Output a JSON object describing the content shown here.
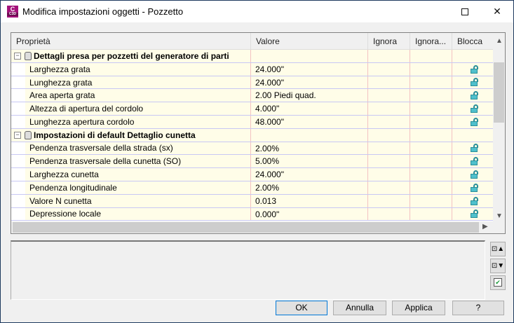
{
  "window": {
    "title": "Modifica impostazioni oggetti - Pozzetto",
    "app_icon_letter": "C",
    "app_icon_sub": "C3D"
  },
  "columns": [
    "Proprietà",
    "Valore",
    "Ignora",
    "Ignora...",
    "Blocca"
  ],
  "groups": [
    {
      "label": "Dettagli presa per pozzetti del generatore di parti",
      "rows": [
        {
          "name": "Larghezza grata",
          "value": "24.000\""
        },
        {
          "name": "Lunghezza grata",
          "value": "24.000\""
        },
        {
          "name": "Area aperta grata",
          "value": "2.00 Piedi quad."
        },
        {
          "name": "Altezza di apertura del cordolo",
          "value": "4.000\""
        },
        {
          "name": "Lunghezza apertura cordolo",
          "value": "48.000\""
        }
      ]
    },
    {
      "label": "Impostazioni di default Dettaglio cunetta",
      "rows": [
        {
          "name": "Pendenza trasversale della strada (sx)",
          "value": "2.00%"
        },
        {
          "name": "Pendenza trasversale della cunetta (SO)",
          "value": "5.00%"
        },
        {
          "name": "Larghezza cunetta",
          "value": "24.000\""
        },
        {
          "name": "Pendenza longitudinale",
          "value": "2.00%"
        },
        {
          "name": "Valore N cunetta",
          "value": "0.013"
        },
        {
          "name": "Depressione locale",
          "value": "0.000\""
        }
      ]
    }
  ],
  "lock_icon": "unlocked-padlock",
  "lock_color": "#4fc0cc",
  "buttons": {
    "ok": "OK",
    "cancel": "Annulla",
    "apply": "Applica",
    "help": "?"
  }
}
